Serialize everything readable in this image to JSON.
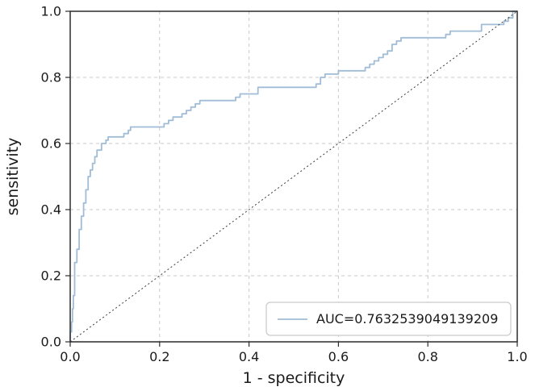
{
  "chart_data": {
    "type": "line",
    "title": "",
    "xlabel": "1 - specificity",
    "ylabel": "sensitivity",
    "xlim": [
      0.0,
      1.0
    ],
    "ylim": [
      0.0,
      1.0
    ],
    "xticks": [
      0.0,
      0.2,
      0.4,
      0.6,
      0.8,
      1.0
    ],
    "yticks": [
      0.0,
      0.2,
      0.4,
      0.6,
      0.8,
      1.0
    ],
    "grid": true,
    "grid_color": "#c9c9c9",
    "spine_color": "#2b2b2b",
    "legend_position": "lower right",
    "series": [
      {
        "name": "AUC=0.7632539049139209",
        "color": "#a0bcd6",
        "style": "step",
        "points": [
          [
            0.0,
            0.0
          ],
          [
            0.003,
            0.03
          ],
          [
            0.005,
            0.06
          ],
          [
            0.007,
            0.1
          ],
          [
            0.01,
            0.14
          ],
          [
            0.01,
            0.2
          ],
          [
            0.015,
            0.24
          ],
          [
            0.02,
            0.28
          ],
          [
            0.02,
            0.31
          ],
          [
            0.025,
            0.34
          ],
          [
            0.03,
            0.38
          ],
          [
            0.035,
            0.42
          ],
          [
            0.04,
            0.46
          ],
          [
            0.045,
            0.5
          ],
          [
            0.05,
            0.52
          ],
          [
            0.055,
            0.54
          ],
          [
            0.06,
            0.56
          ],
          [
            0.07,
            0.58
          ],
          [
            0.08,
            0.6
          ],
          [
            0.085,
            0.61
          ],
          [
            0.09,
            0.62
          ],
          [
            0.12,
            0.62
          ],
          [
            0.13,
            0.63
          ],
          [
            0.135,
            0.64
          ],
          [
            0.14,
            0.65
          ],
          [
            0.21,
            0.65
          ],
          [
            0.22,
            0.66
          ],
          [
            0.23,
            0.67
          ],
          [
            0.25,
            0.68
          ],
          [
            0.26,
            0.69
          ],
          [
            0.27,
            0.7
          ],
          [
            0.28,
            0.71
          ],
          [
            0.29,
            0.72
          ],
          [
            0.3,
            0.73
          ],
          [
            0.37,
            0.73
          ],
          [
            0.38,
            0.74
          ],
          [
            0.4,
            0.75
          ],
          [
            0.42,
            0.75
          ],
          [
            0.43,
            0.77
          ],
          [
            0.55,
            0.77
          ],
          [
            0.56,
            0.78
          ],
          [
            0.57,
            0.8
          ],
          [
            0.58,
            0.81
          ],
          [
            0.6,
            0.81
          ],
          [
            0.61,
            0.82
          ],
          [
            0.66,
            0.82
          ],
          [
            0.67,
            0.83
          ],
          [
            0.68,
            0.84
          ],
          [
            0.69,
            0.85
          ],
          [
            0.7,
            0.86
          ],
          [
            0.71,
            0.87
          ],
          [
            0.72,
            0.88
          ],
          [
            0.73,
            0.9
          ],
          [
            0.74,
            0.91
          ],
          [
            0.76,
            0.92
          ],
          [
            0.84,
            0.92
          ],
          [
            0.85,
            0.93
          ],
          [
            0.86,
            0.94
          ],
          [
            0.92,
            0.94
          ],
          [
            0.93,
            0.96
          ],
          [
            0.97,
            0.96
          ],
          [
            0.98,
            0.97
          ],
          [
            0.99,
            0.98
          ],
          [
            1.0,
            1.0
          ]
        ]
      },
      {
        "name": "chance-diagonal",
        "color": "#3b3b3b",
        "style": "dotted",
        "points": [
          [
            0.0,
            0.0
          ],
          [
            1.0,
            1.0
          ]
        ]
      }
    ],
    "legend": {
      "label": "AUC=0.7632539049139209"
    }
  }
}
